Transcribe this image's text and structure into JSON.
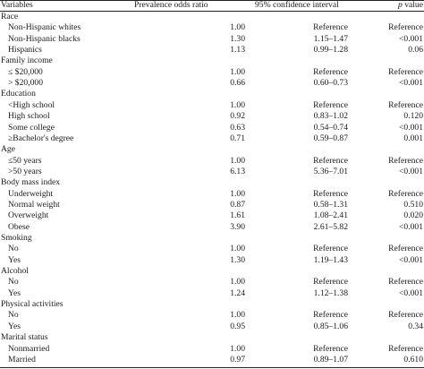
{
  "header": {
    "variables": "Variables",
    "por": "Prevalence odds ratio",
    "ci": "95% confidence interval",
    "p_italic": "p",
    "p_rest": " value"
  },
  "rows": [
    {
      "label": "Race",
      "group": true
    },
    {
      "label": "Non-Hispanic whites",
      "por": "1.00",
      "ci": "Reference",
      "p": "Reference"
    },
    {
      "label": "Non-Hispanic blacks",
      "por": "1.30",
      "ci": "1.15–1.47",
      "p": "<0.001"
    },
    {
      "label": "Hispanics",
      "por": "1.13",
      "ci": "0.99–1.28",
      "p": "0.06"
    },
    {
      "label": "Family income",
      "group": true
    },
    {
      "label": "≤ $20,000",
      "por": "1.00",
      "ci": "Reference",
      "p": "Reference"
    },
    {
      "label": "> $20,000",
      "por": "0.66",
      "ci": "0.60–0.73",
      "p": "<0.001"
    },
    {
      "label": "Education",
      "group": true
    },
    {
      "label": "<High school",
      "por": "1.00",
      "ci": "Reference",
      "p": "Reference"
    },
    {
      "label": "High school",
      "por": "0.92",
      "ci": "0.83–1.02",
      "p": "0.120"
    },
    {
      "label": "Some college",
      "por": "0.63",
      "ci": "0.54–0.74",
      "p": "<0.001"
    },
    {
      "label": "≥Bachelor's degree",
      "por": "0.71",
      "ci": "0.59–0.87",
      "p": "0.001"
    },
    {
      "label": "Age",
      "group": true
    },
    {
      "label": "≤50 years",
      "por": "1.00",
      "ci": "Reference",
      "p": "Reference"
    },
    {
      "label": ">50 years",
      "por": "6.13",
      "ci": "5.36–7.01",
      "p": "<0.001"
    },
    {
      "label": "Body mass index",
      "group": true
    },
    {
      "label": "Underweight",
      "por": "1.00",
      "ci": "Reference",
      "p": "Reference"
    },
    {
      "label": "Normal weight",
      "por": "0.87",
      "ci": "0.58–1.31",
      "p": "0.510"
    },
    {
      "label": "Overweight",
      "por": "1.61",
      "ci": "1.08–2.41",
      "p": "0.020"
    },
    {
      "label": "Obese",
      "por": "3.90",
      "ci": "2.61–5.82",
      "p": "<0.001"
    },
    {
      "label": "Smoking",
      "group": true
    },
    {
      "label": "No",
      "por": "1.00",
      "ci": "Reference",
      "p": "Reference"
    },
    {
      "label": "Yes",
      "por": "1.30",
      "ci": "1.19–1.43",
      "p": "<0.001"
    },
    {
      "label": "Alcohol",
      "group": true
    },
    {
      "label": "No",
      "por": "1.00",
      "ci": "Reference",
      "p": "Reference"
    },
    {
      "label": "Yes",
      "por": "1.24",
      "ci": "1.12–1.38",
      "p": "<0.001"
    },
    {
      "label": "Physical activities",
      "group": true
    },
    {
      "label": "No",
      "por": "1.00",
      "ci": "Reference",
      "p": "Reference"
    },
    {
      "label": "Yes",
      "por": "0.95",
      "ci": "0.85–1.06",
      "p": "0.34"
    },
    {
      "label": "Marital status",
      "group": true
    },
    {
      "label": "Nonmarried",
      "por": "1.00",
      "ci": "Reference",
      "p": "Reference"
    },
    {
      "label": "Married",
      "por": "0.97",
      "ci": "0.89–1.07",
      "p": "0.610"
    }
  ]
}
